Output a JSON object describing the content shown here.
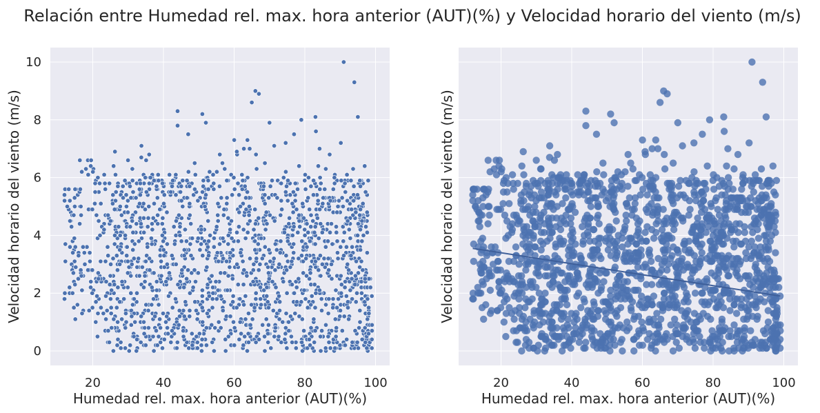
{
  "figure": {
    "title": "Relación entre Humedad rel. max. hora anterior (AUT)(%) y Velocidad horario del viento (m/s)"
  },
  "colors": {
    "background": "#ffffff",
    "axes_face": "#eaeaf2",
    "grid": "#ffffff",
    "scatter": "#4c72b0",
    "regression_line": "#4c72b0",
    "text": "#262626"
  },
  "chart_data": [
    {
      "type": "scatter",
      "title": "",
      "xlabel": "Humedad rel. max. hora anterior (AUT)(%)",
      "ylabel": "Velocidad horario del viento (m/s)",
      "xlim": [
        8,
        104
      ],
      "ylim": [
        -0.5,
        10.5
      ],
      "xticks": [
        20,
        40,
        60,
        80,
        100
      ],
      "yticks": [
        0,
        2,
        4,
        6,
        8,
        10
      ],
      "xtick_labels": [
        "20",
        "40",
        "60",
        "80",
        "100"
      ],
      "ytick_labels": [
        "0",
        "2",
        "4",
        "6",
        "8",
        "10"
      ],
      "grid": true,
      "show_ytick_labels": true,
      "x_range": [
        12,
        99
      ],
      "y_range": [
        0,
        10
      ],
      "notable_points": [
        {
          "x": 91,
          "y": 10.0
        },
        {
          "x": 94,
          "y": 9.3
        },
        {
          "x": 66,
          "y": 9.0
        },
        {
          "x": 67,
          "y": 8.9
        },
        {
          "x": 65,
          "y": 8.6
        },
        {
          "x": 44,
          "y": 8.3
        },
        {
          "x": 51,
          "y": 8.2
        },
        {
          "x": 83,
          "y": 8.1
        },
        {
          "x": 95,
          "y": 8.1
        },
        {
          "x": 79,
          "y": 8.0
        },
        {
          "x": 70,
          "y": 7.9
        },
        {
          "x": 52,
          "y": 7.9
        },
        {
          "x": 44,
          "y": 7.8
        },
        {
          "x": 47,
          "y": 7.5
        },
        {
          "x": 12,
          "y": 5.4
        },
        {
          "x": 12,
          "y": 1.8
        },
        {
          "x": 99,
          "y": 0.9
        },
        {
          "x": 99,
          "y": 0.7
        }
      ]
    },
    {
      "type": "scatter",
      "title": "",
      "xlabel": "Humedad rel. max. hora anterior (AUT)(%)",
      "ylabel": "Velocidad horario del viento (m/s)",
      "xlim": [
        8,
        104
      ],
      "ylim": [
        -0.5,
        10.5
      ],
      "xticks": [
        20,
        40,
        60,
        80,
        100
      ],
      "yticks": [
        0,
        2,
        4,
        6,
        8,
        10
      ],
      "xtick_labels": [
        "20",
        "40",
        "60",
        "80",
        "100"
      ],
      "ytick_labels": [],
      "grid": true,
      "show_ytick_labels": false,
      "x_range": [
        12,
        99
      ],
      "y_range": [
        0,
        10
      ],
      "regression_line": {
        "x": [
          12,
          99
        ],
        "y": [
          3.55,
          1.9
        ]
      },
      "notable_points": [
        {
          "x": 91,
          "y": 10.0
        },
        {
          "x": 94,
          "y": 9.3
        },
        {
          "x": 66,
          "y": 9.0
        },
        {
          "x": 67,
          "y": 8.9
        },
        {
          "x": 65,
          "y": 8.6
        },
        {
          "x": 44,
          "y": 8.3
        },
        {
          "x": 51,
          "y": 8.2
        },
        {
          "x": 83,
          "y": 8.1
        },
        {
          "x": 95,
          "y": 8.1
        },
        {
          "x": 79,
          "y": 8.0
        },
        {
          "x": 70,
          "y": 7.9
        },
        {
          "x": 52,
          "y": 7.9
        },
        {
          "x": 44,
          "y": 7.8
        },
        {
          "x": 47,
          "y": 7.5
        },
        {
          "x": 12,
          "y": 5.4
        },
        {
          "x": 12,
          "y": 1.8
        },
        {
          "x": 99,
          "y": 0.9
        },
        {
          "x": 99,
          "y": 0.7
        }
      ]
    }
  ]
}
